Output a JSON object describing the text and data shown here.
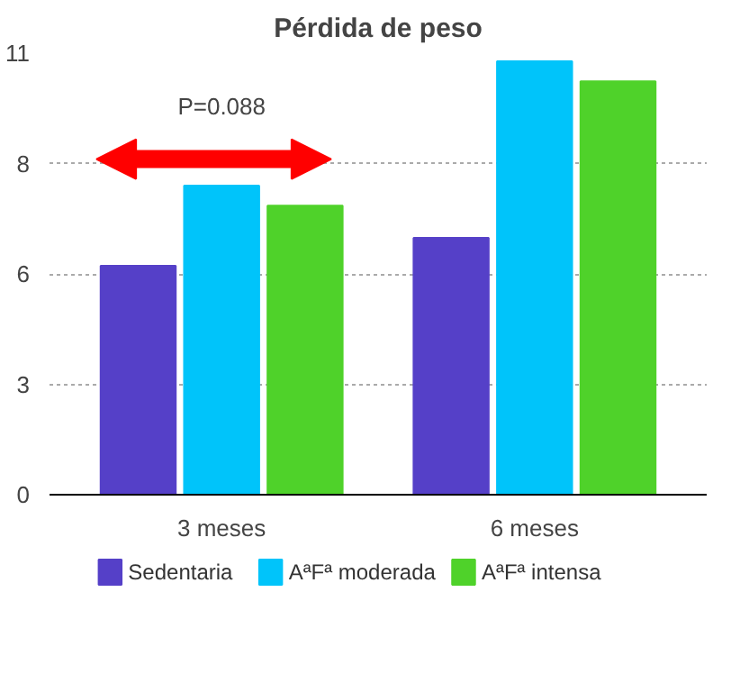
{
  "chart_data": {
    "type": "bar",
    "title": "Pérdida de peso",
    "categories": [
      "3 meses",
      "6 meses"
    ],
    "series": [
      {
        "name": "Sedentaria",
        "color": "#5540c8",
        "values": [
          5.7,
          6.4
        ]
      },
      {
        "name": "AªFª moderada",
        "color": "#00c4fa",
        "values": [
          7.7,
          10.8
        ]
      },
      {
        "name": "AªFª intensa",
        "color": "#4fd22a",
        "values": [
          7.2,
          10.3
        ]
      }
    ],
    "ylim": [
      0,
      11
    ],
    "yticks": [
      0,
      {
        "value": 2.75,
        "label": "3"
      },
      {
        "value": 5.5,
        "label": "6"
      },
      {
        "value": 8.25,
        "label": "8"
      },
      11
    ],
    "grid": "y",
    "legend": "bottom",
    "annotations": [
      "P=0.088"
    ]
  }
}
